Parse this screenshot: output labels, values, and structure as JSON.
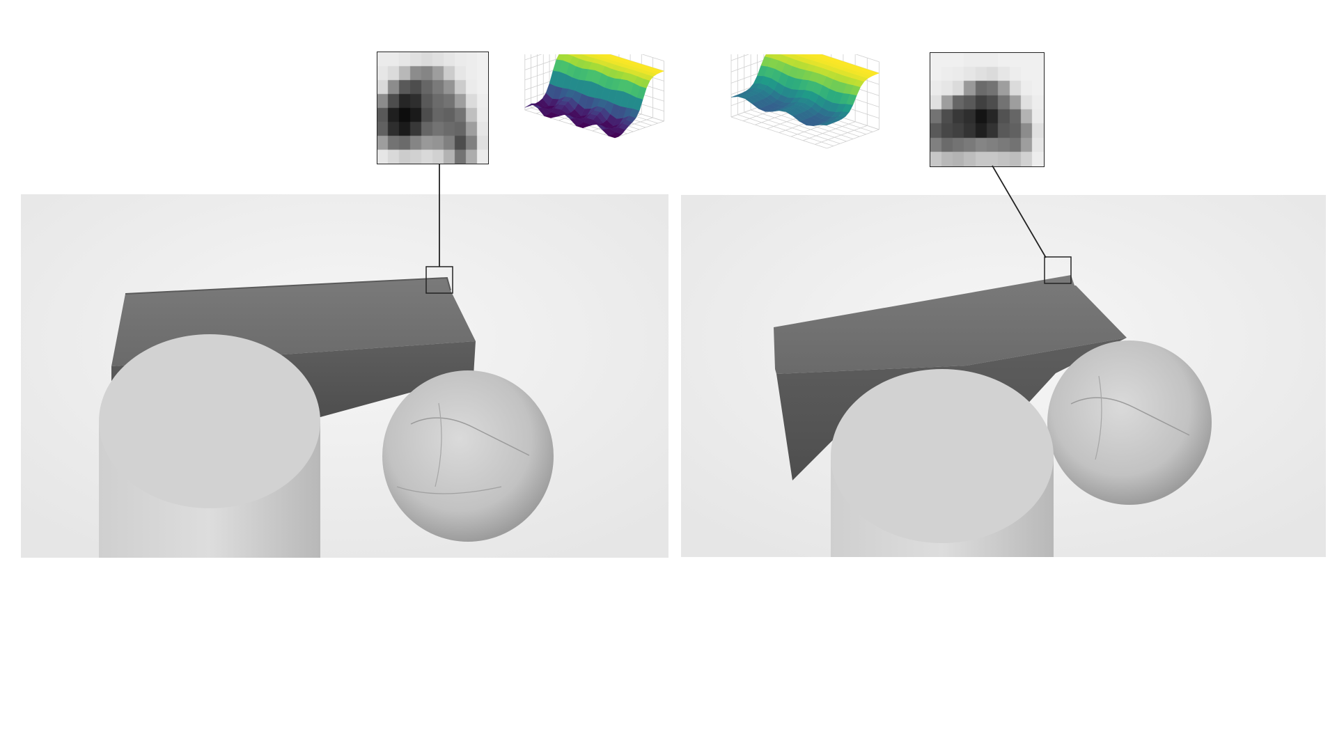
{
  "figure": {
    "panels": [
      {
        "id": "left",
        "patch": {
          "type": "grayscale-patch",
          "grid": [
            [
              0.92,
              0.92,
              0.9,
              0.88,
              0.86,
              0.88,
              0.9,
              0.92,
              0.93,
              0.94
            ],
            [
              0.9,
              0.86,
              0.72,
              0.55,
              0.52,
              0.62,
              0.8,
              0.9,
              0.93,
              0.94
            ],
            [
              0.85,
              0.55,
              0.35,
              0.3,
              0.4,
              0.48,
              0.58,
              0.8,
              0.92,
              0.94
            ],
            [
              0.55,
              0.3,
              0.15,
              0.18,
              0.35,
              0.42,
              0.45,
              0.62,
              0.86,
              0.93
            ],
            [
              0.35,
              0.12,
              0.05,
              0.1,
              0.3,
              0.4,
              0.38,
              0.45,
              0.75,
              0.92
            ],
            [
              0.38,
              0.18,
              0.1,
              0.22,
              0.4,
              0.45,
              0.42,
              0.4,
              0.62,
              0.9
            ],
            [
              0.62,
              0.45,
              0.42,
              0.52,
              0.6,
              0.58,
              0.5,
              0.3,
              0.5,
              0.88
            ],
            [
              0.9,
              0.85,
              0.8,
              0.82,
              0.85,
              0.82,
              0.7,
              0.45,
              0.68,
              0.92
            ]
          ]
        },
        "surface": {
          "type": "3d-surface",
          "colormap": "viridis",
          "profile": "deep-valley"
        }
      },
      {
        "id": "right",
        "patch": {
          "type": "grayscale-patch",
          "grid": [
            [
              0.94,
              0.94,
              0.94,
              0.93,
              0.93,
              0.93,
              0.94,
              0.94,
              0.94,
              0.94
            ],
            [
              0.94,
              0.93,
              0.92,
              0.9,
              0.88,
              0.86,
              0.9,
              0.93,
              0.94,
              0.94
            ],
            [
              0.92,
              0.9,
              0.86,
              0.6,
              0.42,
              0.45,
              0.62,
              0.86,
              0.93,
              0.94
            ],
            [
              0.88,
              0.62,
              0.4,
              0.35,
              0.25,
              0.3,
              0.45,
              0.62,
              0.88,
              0.93
            ],
            [
              0.45,
              0.3,
              0.22,
              0.18,
              0.08,
              0.15,
              0.32,
              0.4,
              0.7,
              0.92
            ],
            [
              0.35,
              0.28,
              0.25,
              0.2,
              0.12,
              0.2,
              0.35,
              0.38,
              0.55,
              0.88
            ],
            [
              0.5,
              0.42,
              0.45,
              0.48,
              0.52,
              0.5,
              0.48,
              0.45,
              0.62,
              0.9
            ],
            [
              0.78,
              0.72,
              0.7,
              0.74,
              0.78,
              0.78,
              0.76,
              0.74,
              0.82,
              0.93
            ]
          ]
        },
        "surface": {
          "type": "3d-surface",
          "colormap": "viridis",
          "profile": "shallow-valley"
        }
      }
    ],
    "colors": {
      "frame": "#222222",
      "background": "#efefef",
      "brick": "#6f6f6f",
      "brick_side": "#5c5c5c",
      "cardboard": "#c9c9c9",
      "cardboard_dark": "#b8b8b8",
      "viridis": [
        "#440154",
        "#46327e",
        "#365c8d",
        "#277f8e",
        "#1fa187",
        "#4ac16d",
        "#a0da39",
        "#fde725"
      ]
    }
  }
}
